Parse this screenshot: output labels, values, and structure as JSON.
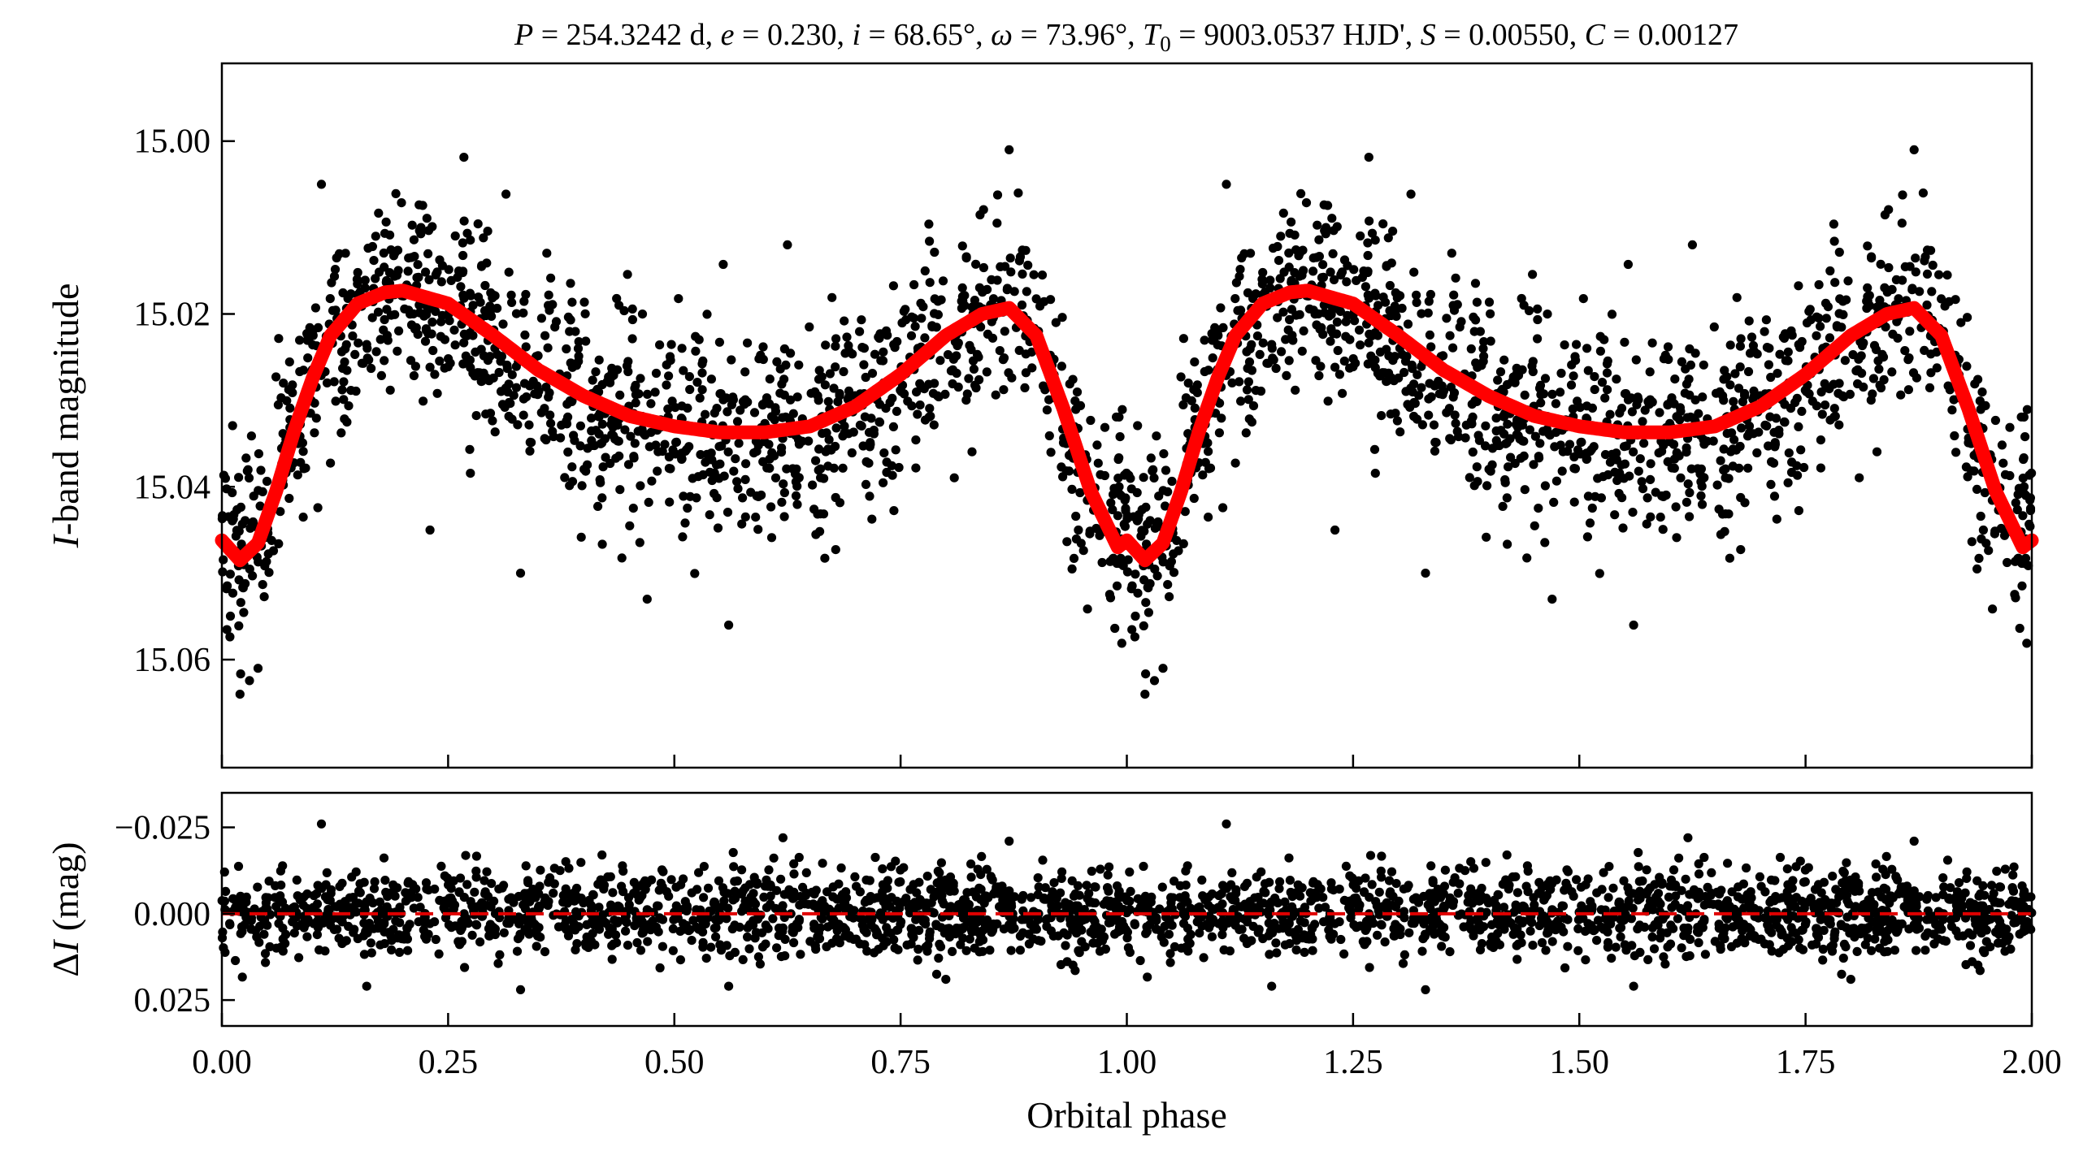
{
  "figure": {
    "title": "P = 254.3242 d, e = 0.230, i = 68.65°, ω = 73.96°, T0 = 9003.0537 HJD', S = 0.00550, C = 0.00127",
    "colors": {
      "data_points": "#000000",
      "model_curve": "#ff0000",
      "zero_line": "#e00000",
      "axes": "#000000"
    }
  },
  "chart_data": [
    {
      "type": "scatter",
      "panel": "light-curve",
      "title": "P = 254.3242 d, e = 0.230, i = 68.65°, ω = 73.96°, T0 = 9003.0537 HJD', S = 0.00550, C = 0.00127",
      "xlabel": "",
      "ylabel": "I-band magnitude",
      "ylabel_parts": {
        "italic": "I",
        "rest": "-band magnitude"
      },
      "xlim": [
        0.0,
        2.0
      ],
      "ylim": [
        15.0725,
        14.991
      ],
      "y_inverted": true,
      "yticks": [
        15.0,
        15.02,
        15.04,
        15.06
      ],
      "ytick_labels": [
        "15.00",
        "15.02",
        "15.04",
        "15.06"
      ],
      "xticks": [
        0.0,
        0.25,
        0.5,
        0.75,
        1.0,
        1.25,
        1.5,
        1.75,
        2.0
      ],
      "grid": false,
      "series": [
        {
          "kind": "observations",
          "marker": "filled circle",
          "color": "#000000",
          "points_per_phase_cycle": 1300,
          "mean_curve_points": [
            [
              0.0,
              15.044
            ],
            [
              0.02,
              15.049
            ],
            [
              0.05,
              15.044
            ],
            [
              0.08,
              15.032
            ],
            [
              0.12,
              15.022
            ],
            [
              0.16,
              15.0185
            ],
            [
              0.2,
              15.0175
            ],
            [
              0.25,
              15.02
            ],
            [
              0.3,
              15.0245
            ],
            [
              0.35,
              15.028
            ],
            [
              0.4,
              15.0305
            ],
            [
              0.45,
              15.0323
            ],
            [
              0.5,
              15.0333
            ],
            [
              0.55,
              15.0339
            ],
            [
              0.6,
              15.0339
            ],
            [
              0.65,
              15.0333
            ],
            [
              0.7,
              15.031
            ],
            [
              0.75,
              15.027
            ],
            [
              0.8,
              15.0225
            ],
            [
              0.85,
              15.0195
            ],
            [
              0.88,
              15.0195
            ],
            [
              0.91,
              15.026
            ],
            [
              0.95,
              15.04
            ],
            [
              0.98,
              15.047
            ]
          ],
          "scatter_sigma_mag": 0.006,
          "outliers": [
            [
              0.11,
              15.005
            ],
            [
              0.17,
              15.011
            ],
            [
              0.22,
              15.01
            ],
            [
              0.87,
              15.001
            ],
            [
              0.88,
              15.006
            ],
            [
              0.625,
              15.012
            ],
            [
              0.33,
              15.05
            ],
            [
              0.56,
              15.056
            ],
            [
              0.02,
              15.064
            ],
            [
              0.04,
              15.061
            ],
            [
              0.47,
              15.053
            ],
            [
              0.23,
              15.045
            ]
          ]
        },
        {
          "kind": "model",
          "style": "thick solid line",
          "color": "#ff0000",
          "points": [
            [
              0.0,
              15.0462
            ],
            [
              0.02,
              15.0485
            ],
            [
              0.04,
              15.0465
            ],
            [
              0.06,
              15.0405
            ],
            [
              0.08,
              15.0335
            ],
            [
              0.1,
              15.0275
            ],
            [
              0.12,
              15.0225
            ],
            [
              0.15,
              15.0188
            ],
            [
              0.18,
              15.0175
            ],
            [
              0.2,
              15.0173
            ],
            [
              0.25,
              15.0188
            ],
            [
              0.3,
              15.0225
            ],
            [
              0.35,
              15.0265
            ],
            [
              0.4,
              15.0295
            ],
            [
              0.45,
              15.0318
            ],
            [
              0.5,
              15.033
            ],
            [
              0.55,
              15.0337
            ],
            [
              0.6,
              15.0337
            ],
            [
              0.65,
              15.033
            ],
            [
              0.7,
              15.0307
            ],
            [
              0.75,
              15.027
            ],
            [
              0.8,
              15.0225
            ],
            [
              0.84,
              15.02
            ],
            [
              0.87,
              15.0193
            ],
            [
              0.9,
              15.0225
            ],
            [
              0.93,
              15.031
            ],
            [
              0.96,
              15.0405
            ],
            [
              0.99,
              15.047
            ],
            [
              1.0,
              15.0462
            ]
          ],
          "periodic_in_phase": true
        }
      ]
    },
    {
      "type": "scatter",
      "panel": "residuals",
      "xlabel": "Orbital phase",
      "ylabel": "ΔI (mag)",
      "ylabel_parts": {
        "pre": "Δ",
        "italic": "I",
        "rest": " (mag)"
      },
      "xlim": [
        0.0,
        2.0
      ],
      "ylim": [
        0.0325,
        -0.035
      ],
      "y_inverted": true,
      "yticks": [
        -0.025,
        0.0,
        0.025
      ],
      "ytick_labels": [
        "−0.025",
        "0.000",
        "0.025"
      ],
      "xticks": [
        0.0,
        0.25,
        0.5,
        0.75,
        1.0,
        1.25,
        1.5,
        1.75,
        2.0
      ],
      "xtick_labels": [
        "0.00",
        "0.25",
        "0.50",
        "0.75",
        "1.00",
        "1.25",
        "1.50",
        "1.75",
        "2.00"
      ],
      "grid": false,
      "series": [
        {
          "kind": "residuals",
          "marker": "filled circle",
          "color": "#000000",
          "scatter_sigma_mag": 0.006,
          "outliers": [
            [
              0.11,
              -0.026
            ],
            [
              0.62,
              -0.022
            ],
            [
              0.87,
              -0.021
            ],
            [
              0.16,
              0.021
            ],
            [
              0.33,
              0.022
            ],
            [
              0.56,
              0.021
            ],
            [
              0.42,
              -0.017
            ],
            [
              0.8,
              0.019
            ]
          ]
        },
        {
          "kind": "zero-line",
          "style": "dashed",
          "color": "#e00000",
          "y": 0.0
        }
      ]
    }
  ]
}
